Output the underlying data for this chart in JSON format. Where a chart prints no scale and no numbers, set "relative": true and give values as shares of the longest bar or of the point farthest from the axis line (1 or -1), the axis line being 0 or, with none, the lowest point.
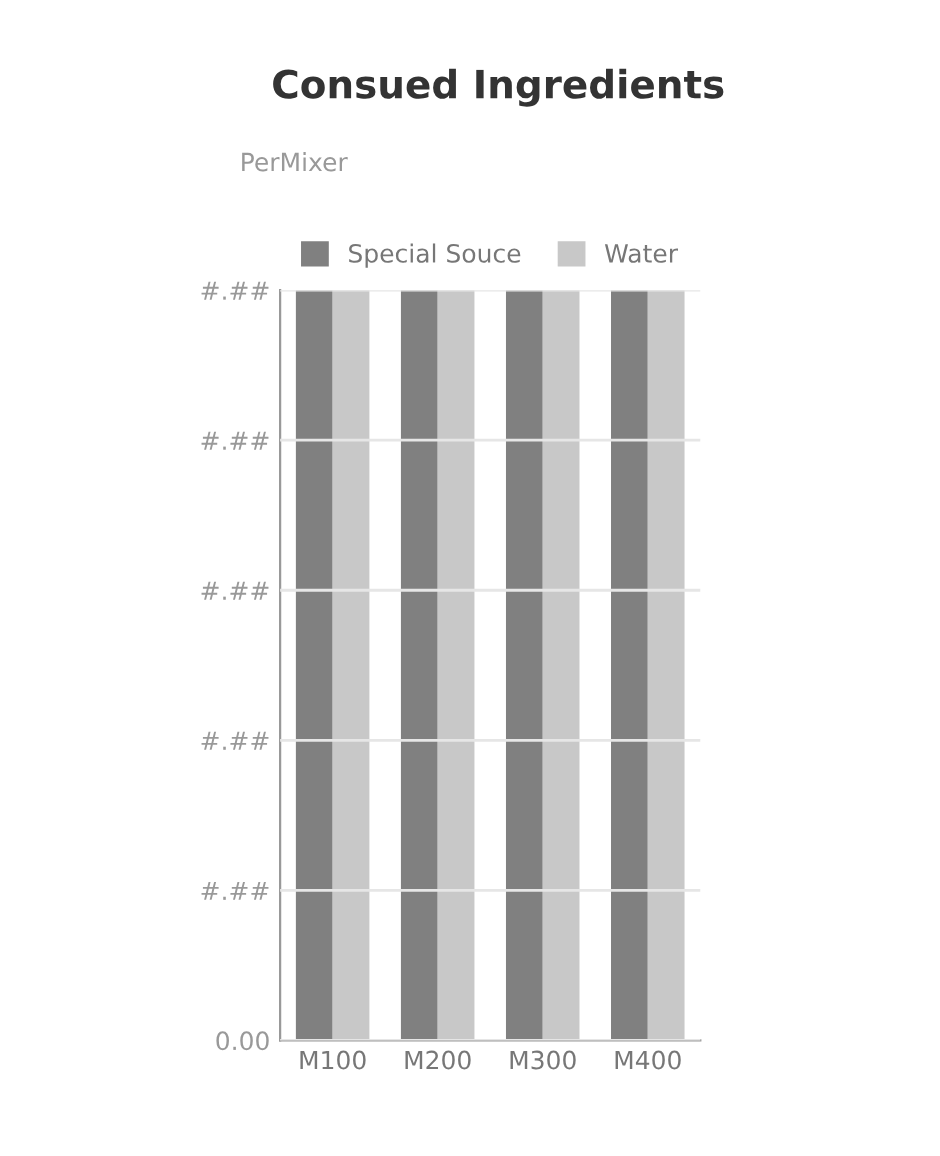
{
  "chart_data": {
    "type": "bar",
    "title": "Consued Ingredients",
    "subtitle": "PerMixer",
    "categories": [
      "M100",
      "M200",
      "M300",
      "M400"
    ],
    "relative": true,
    "series": [
      {
        "name": "Special Souce",
        "color": "#808080",
        "values": [
          1,
          1,
          1,
          1
        ]
      },
      {
        "name": "Water",
        "color": "#c8c8c8",
        "values": [
          1,
          1,
          1,
          1
        ]
      }
    ],
    "annotations": [
      "0.00",
      "#.##",
      "#.##",
      "#.##",
      "#.##",
      "#.##"
    ],
    "grid": "y",
    "legend": "top"
  }
}
